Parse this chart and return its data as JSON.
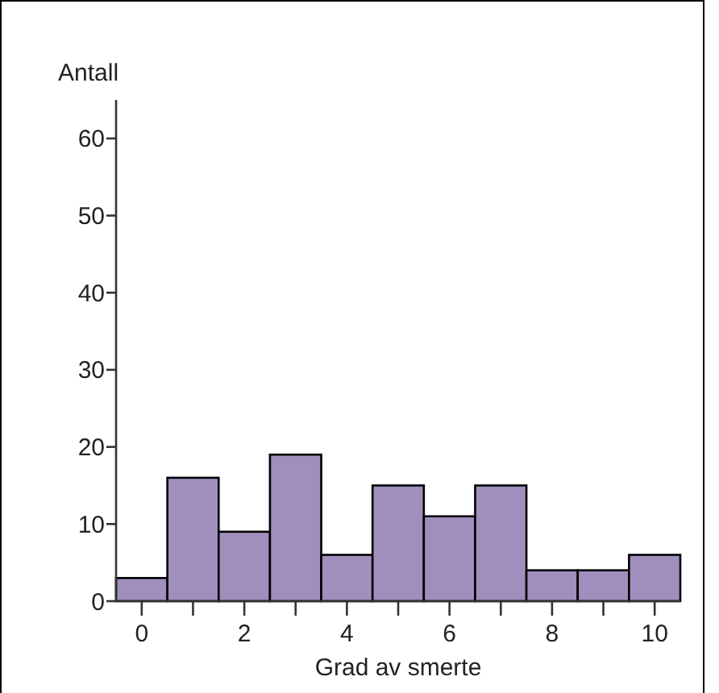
{
  "chart_data": {
    "type": "histogram",
    "ylabel": "Antall",
    "xlabel": "Grad av smerte",
    "bins": [
      -0.5,
      0.5,
      1.5,
      2.5,
      3.5,
      4.5,
      5.5,
      6.5,
      7.5,
      8.5,
      9.5,
      10.5
    ],
    "values": [
      3,
      16,
      9,
      19,
      6,
      15,
      11,
      15,
      4,
      4,
      6
    ],
    "color": "#a08fbd",
    "xlim": [
      -0.5,
      10.5
    ],
    "ylim": [
      0,
      65
    ],
    "xticks": [
      0,
      {
        "value": 1,
        "label": null
      },
      2,
      {
        "value": 3,
        "label": null
      },
      4,
      {
        "value": 5,
        "label": null
      },
      6,
      {
        "value": 7,
        "label": null
      },
      8,
      {
        "value": 9,
        "label": null
      },
      10
    ],
    "yticks": [
      0,
      10,
      20,
      30,
      40,
      50,
      60
    ],
    "grid": false
  }
}
